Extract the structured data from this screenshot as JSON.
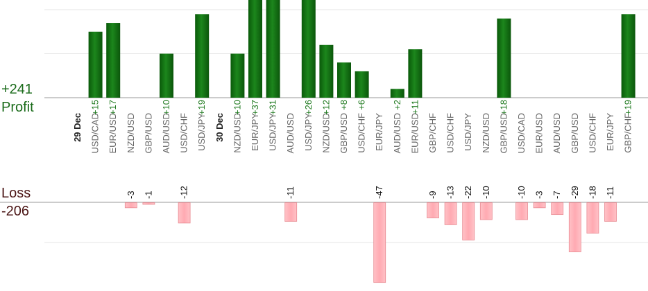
{
  "totals": {
    "profit_value": "+241",
    "profit_label": "Profit",
    "loss_label": "Loss",
    "loss_value": "-206"
  },
  "colors": {
    "profit": "#0f6b0f",
    "loss": "#ffb0b6",
    "loss_border": "#e88a92"
  },
  "chart_data": {
    "type": "bar",
    "categories": [
      {
        "type": "day",
        "label": "29 Dec"
      },
      {
        "type": "pair",
        "label": "USD/CAD",
        "profit": 15
      },
      {
        "type": "pair",
        "label": "EUR/USD",
        "profit": 17
      },
      {
        "type": "pair",
        "label": "NZD/USD",
        "loss": -3
      },
      {
        "type": "pair",
        "label": "GBP/USD",
        "loss": -1
      },
      {
        "type": "pair",
        "label": "AUD/USD",
        "profit": 10
      },
      {
        "type": "pair",
        "label": "USD/CHF",
        "loss": -12
      },
      {
        "type": "pair",
        "label": "USD/JPY",
        "profit": 19
      },
      {
        "type": "day",
        "label": "30 Dec"
      },
      {
        "type": "pair",
        "label": "NZD/USD",
        "profit": 10
      },
      {
        "type": "pair",
        "label": "EUR/JPY",
        "profit": 37
      },
      {
        "type": "pair",
        "label": "USD/JPY",
        "profit": 31
      },
      {
        "type": "pair",
        "label": "AUD/USD",
        "loss": -11
      },
      {
        "type": "pair",
        "label": "USD/JPY",
        "profit": 26
      },
      {
        "type": "pair",
        "label": "NZD/USD",
        "profit": 12
      },
      {
        "type": "pair",
        "label": "GBP/USD",
        "profit": 8
      },
      {
        "type": "pair",
        "label": "USD/CHF",
        "profit": 6
      },
      {
        "type": "pair",
        "label": "EUR/JPY",
        "loss": -47
      },
      {
        "type": "pair",
        "label": "AUD/USD",
        "profit": 2
      },
      {
        "type": "pair",
        "label": "EUR/USD",
        "profit": 11
      },
      {
        "type": "pair",
        "label": "GBP/CHF",
        "loss": -9
      },
      {
        "type": "pair",
        "label": "USD/CHF",
        "loss": -13
      },
      {
        "type": "pair",
        "label": "USD/JPY",
        "loss": -22
      },
      {
        "type": "pair",
        "label": "NZD/USD",
        "loss": -10
      },
      {
        "type": "pair",
        "label": "GBP/USD",
        "profit": 18
      },
      {
        "type": "pair",
        "label": "USD/CAD",
        "loss": -10
      },
      {
        "type": "pair",
        "label": "EUR/USD",
        "loss": -3
      },
      {
        "type": "pair",
        "label": "AUD/USD",
        "loss": -7
      },
      {
        "type": "pair",
        "label": "GBP/USD",
        "loss": -29
      },
      {
        "type": "pair",
        "label": "USD/CHF",
        "loss": -18
      },
      {
        "type": "pair",
        "label": "EUR/JPY",
        "loss": -11
      },
      {
        "type": "pair",
        "label": "GBP/CHF",
        "profit": 19
      }
    ],
    "profit_axis": {
      "ylim": [
        0,
        22
      ],
      "gridlines": [
        10,
        20
      ]
    },
    "loss_axis": {
      "ylim": [
        0,
        20
      ],
      "gridlines": [
        10
      ]
    },
    "grid": true
  }
}
